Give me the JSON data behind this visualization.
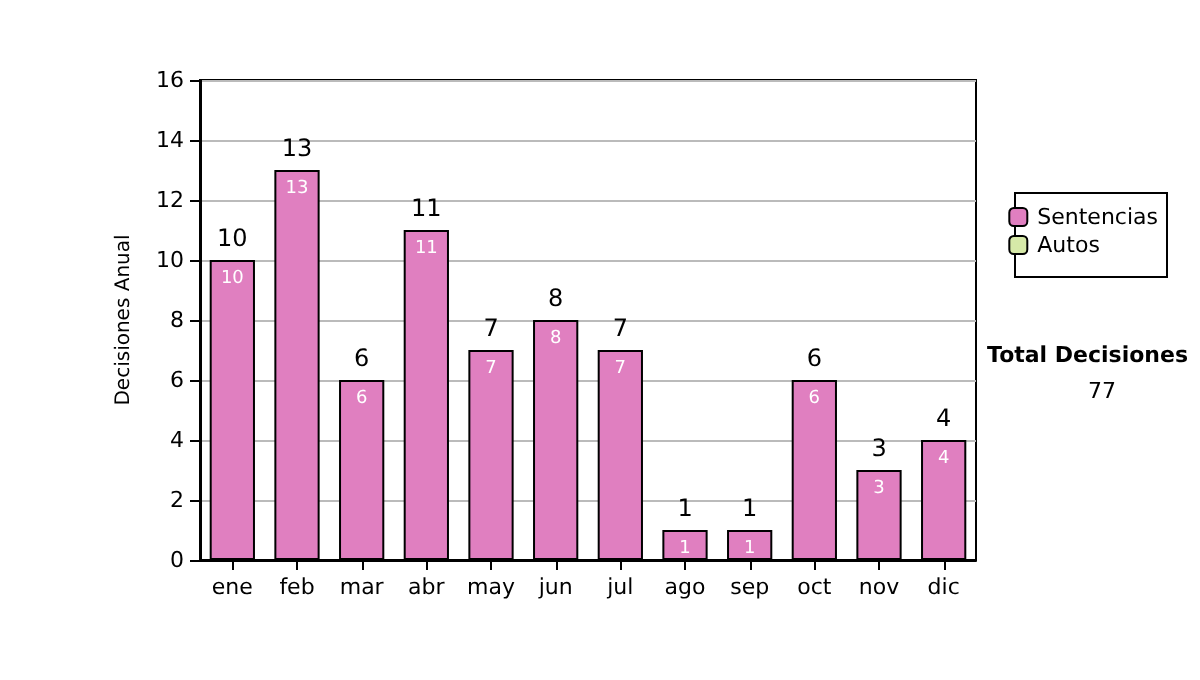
{
  "chart_data": {
    "type": "bar",
    "ylabel": "Decisiones Anual",
    "categories": [
      "ene",
      "feb",
      "mar",
      "abr",
      "may",
      "jun",
      "jul",
      "ago",
      "sep",
      "oct",
      "nov",
      "dic"
    ],
    "stacked": true,
    "series": [
      {
        "name": "Sentencias",
        "color": "#e07fc0",
        "values": [
          10,
          13,
          6,
          11,
          7,
          8,
          7,
          1,
          1,
          6,
          3,
          4
        ],
        "value_labels": [
          "10",
          "13",
          "6",
          "11",
          "7",
          "8",
          "7",
          "1",
          "1",
          "6",
          "3",
          "4"
        ]
      },
      {
        "name": "Autos",
        "color": "#d6e9a8",
        "values": [
          0,
          0,
          0,
          0,
          0,
          0,
          0,
          0,
          0,
          0,
          0,
          0
        ]
      }
    ],
    "totals": [
      "10",
      "13",
      "6",
      "11",
      "7",
      "8",
      "7",
      "1",
      "1",
      "6",
      "3",
      "4"
    ],
    "ylim": [
      0,
      16
    ],
    "yticks": [
      0,
      2,
      4,
      6,
      8,
      10,
      12,
      14,
      16
    ],
    "grid": "y",
    "legend": "right",
    "annotations": [
      "Total Decisiones",
      "77"
    ]
  }
}
